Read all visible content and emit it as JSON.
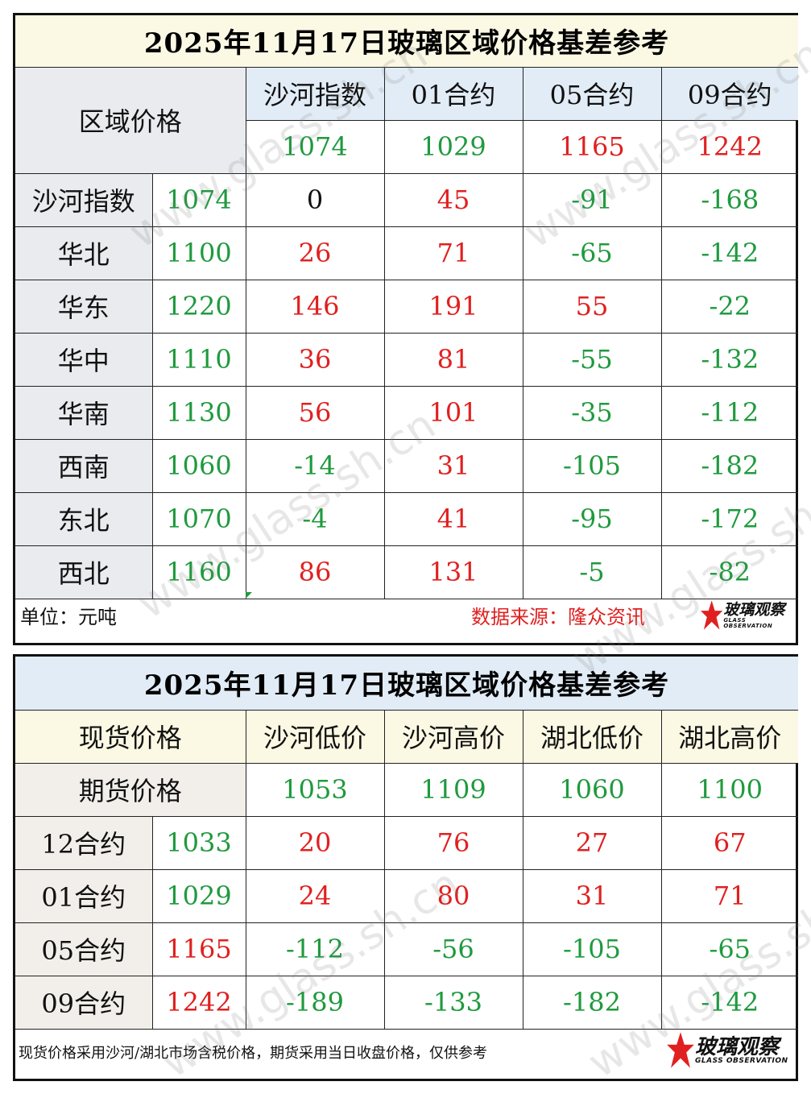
{
  "table1": {
    "title": "2025年11月17日玻璃区域价格基差参考",
    "corner_label": "区域价格",
    "columns": [
      "沙河指数",
      "01合约",
      "05合约",
      "09合约"
    ],
    "column_values": [
      "1074",
      "1029",
      "1165",
      "1242"
    ],
    "column_value_colors": [
      "green",
      "green",
      "red",
      "red"
    ],
    "rows": [
      {
        "name": "沙河指数",
        "price": "1074",
        "values": [
          "0",
          "45",
          "-91",
          "-168"
        ],
        "colors": [
          "black",
          "red",
          "green",
          "green"
        ]
      },
      {
        "name": "华北",
        "price": "1100",
        "values": [
          "26",
          "71",
          "-65",
          "-142"
        ],
        "colors": [
          "red",
          "red",
          "green",
          "green"
        ]
      },
      {
        "name": "华东",
        "price": "1220",
        "values": [
          "146",
          "191",
          "55",
          "-22"
        ],
        "colors": [
          "red",
          "red",
          "red",
          "green"
        ]
      },
      {
        "name": "华中",
        "price": "1110",
        "values": [
          "36",
          "81",
          "-55",
          "-132"
        ],
        "colors": [
          "red",
          "red",
          "green",
          "green"
        ]
      },
      {
        "name": "华南",
        "price": "1130",
        "values": [
          "56",
          "101",
          "-35",
          "-112"
        ],
        "colors": [
          "red",
          "red",
          "green",
          "green"
        ]
      },
      {
        "name": "西南",
        "price": "1060",
        "values": [
          "-14",
          "31",
          "-105",
          "-182"
        ],
        "colors": [
          "green",
          "red",
          "green",
          "green"
        ]
      },
      {
        "name": "东北",
        "price": "1070",
        "values": [
          "-4",
          "41",
          "-95",
          "-172"
        ],
        "colors": [
          "green",
          "red",
          "green",
          "green"
        ]
      },
      {
        "name": "西北",
        "price": "1160",
        "values": [
          "86",
          "131",
          "-5",
          "-82"
        ],
        "colors": [
          "red",
          "red",
          "green",
          "green"
        ]
      }
    ],
    "unit_label": "单位：元吨",
    "source_label": "数据来源：隆众资讯"
  },
  "table2": {
    "title": "2025年11月17日玻璃区域价格基差参考",
    "spot_label": "现货价格",
    "futures_label": "期货价格",
    "columns": [
      "沙河低价",
      "沙河高价",
      "湖北低价",
      "湖北高价"
    ],
    "column_values": [
      "1053",
      "1109",
      "1060",
      "1100"
    ],
    "rows": [
      {
        "name": "12合约",
        "price": "1033",
        "price_color": "green",
        "values": [
          "20",
          "76",
          "27",
          "67"
        ],
        "colors": [
          "red",
          "red",
          "red",
          "red"
        ]
      },
      {
        "name": "01合约",
        "price": "1029",
        "price_color": "green",
        "values": [
          "24",
          "80",
          "31",
          "71"
        ],
        "colors": [
          "red",
          "red",
          "red",
          "red"
        ]
      },
      {
        "name": "05合约",
        "price": "1165",
        "price_color": "red",
        "values": [
          "-112",
          "-56",
          "-105",
          "-65"
        ],
        "colors": [
          "green",
          "green",
          "green",
          "green"
        ]
      },
      {
        "name": "09合约",
        "price": "1242",
        "price_color": "red",
        "values": [
          "-189",
          "-133",
          "-182",
          "-142"
        ],
        "colors": [
          "green",
          "green",
          "green",
          "green"
        ]
      }
    ],
    "note": "现货价格采用沙河/湖北市场含税价格，期货采用当日收盘价格，仅供参考"
  },
  "logo": {
    "zh": "玻璃观察",
    "en": "GLASS OBSERVATION",
    "icon": "red-star-icon"
  },
  "watermark": "www.glass.sh.cn",
  "colors": {
    "green": "#1f9a3e",
    "red": "#e02020",
    "header_yellow": "#fbf9e4",
    "header_blue": "#e2ecf6"
  }
}
